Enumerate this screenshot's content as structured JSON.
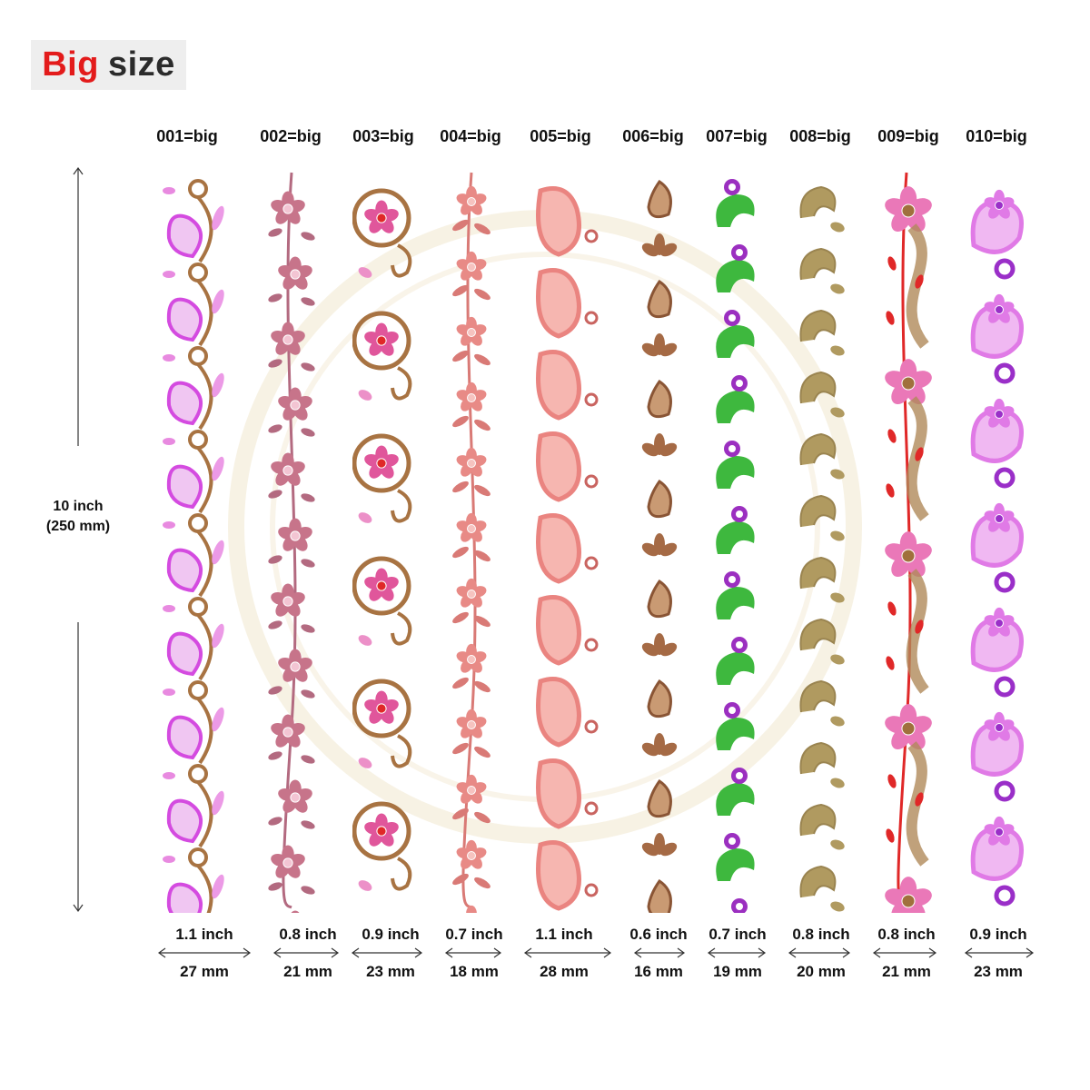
{
  "title": {
    "part1": "Big",
    "part2": "size"
  },
  "height": {
    "inch": "10 inch",
    "mm": "(250 mm)"
  },
  "colors": {
    "title_red": "#e31b1b",
    "title_dark": "#2b2b2b",
    "title_bg": "#eeeeee"
  },
  "designs": [
    {
      "label": "001=big",
      "width_in": "1.1 inch",
      "width_mm": "27 mm",
      "motif": "pink-lotus-with-brown-loops",
      "primary": "#d44be0",
      "secondary": "#a87342"
    },
    {
      "label": "002=big",
      "width_in": "0.8 inch",
      "width_mm": "21 mm",
      "motif": "mauve-flower-vine",
      "primary": "#c7748a",
      "secondary": "#b36a80"
    },
    {
      "label": "003=big",
      "width_in": "0.9 inch",
      "width_mm": "23 mm",
      "motif": "brown-scroll-with-red-flowers",
      "primary": "#a87342",
      "secondary": "#e0569b"
    },
    {
      "label": "004=big",
      "width_in": "0.7 inch",
      "width_mm": "18 mm",
      "motif": "salmon-flower-and-leaf",
      "primary": "#e88a86",
      "secondary": "#d97a76"
    },
    {
      "label": "005=big",
      "width_in": "1.1 inch",
      "width_mm": "28 mm",
      "motif": "coral-paisley-chain",
      "primary": "#ea8480",
      "secondary": "#c96460"
    },
    {
      "label": "006=big",
      "width_in": "0.6 inch",
      "width_mm": "16 mm",
      "motif": "brown-paisley-and-flower",
      "primary": "#a56a45",
      "secondary": "#8a5535"
    },
    {
      "label": "007=big",
      "width_in": "0.7 inch",
      "width_mm": "19 mm",
      "motif": "green-leaf-purple-flower",
      "primary": "#3eb83e",
      "secondary": "#9b2fc0"
    },
    {
      "label": "008=big",
      "width_in": "0.8 inch",
      "width_mm": "20 mm",
      "motif": "olive-scroll",
      "primary": "#b09a60",
      "secondary": "#9a8450"
    },
    {
      "label": "009=big",
      "width_in": "0.8 inch",
      "width_mm": "21 mm",
      "motif": "pink-daisy-with-red-buds",
      "primary": "#ea78b8",
      "secondary": "#e02828"
    },
    {
      "label": "010=big",
      "width_in": "0.9 inch",
      "width_mm": "23 mm",
      "motif": "lilac-flower-with-purple-rings",
      "primary": "#e07ae6",
      "secondary": "#9a2fc8"
    }
  ]
}
